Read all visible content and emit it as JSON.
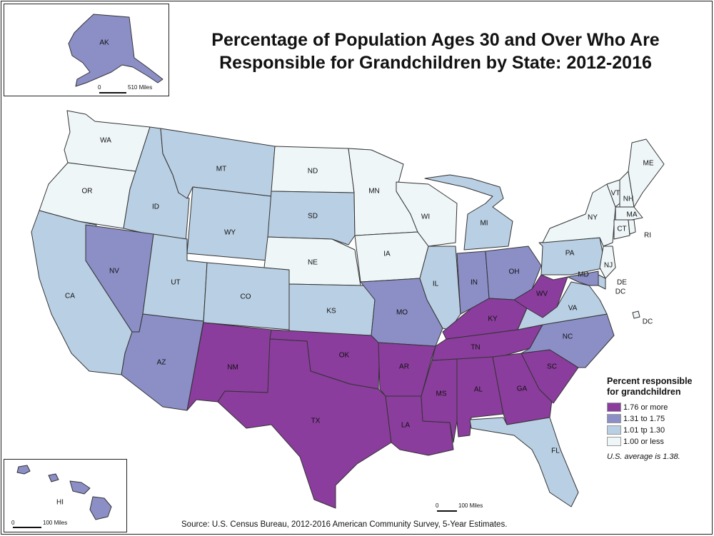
{
  "title": "Percentage of Population Ages 30 and Over Who Are Responsible for Grandchildren by State: 2012-2016",
  "source": "Source: U.S. Census Bureau, 2012-2016 American Community Survey, 5-Year Estimates.",
  "legend": {
    "title": "Percent responsible for grandchildren",
    "classes": [
      {
        "label": "1.76 or more",
        "color": "#8a3d9c"
      },
      {
        "label": "1.31 to 1.75",
        "color": "#8b8fc6"
      },
      {
        "label": "1.01 tp 1.30",
        "color": "#b9cfe3"
      },
      {
        "label": "1.00 or less",
        "color": "#eef6f8"
      }
    ],
    "note": "U.S. average is 1.38."
  },
  "insets": {
    "alaska": {
      "label": "AK",
      "scale_zero": "0",
      "scale_label": "510 Miles"
    },
    "hawaii": {
      "label": "HI",
      "scale_zero": "0",
      "scale_label": "100 Miles"
    }
  },
  "main_scale": {
    "zero": "0",
    "label": "100 Miles"
  },
  "states": {
    "WA": {
      "label": "WA",
      "class": 3
    },
    "OR": {
      "label": "OR",
      "class": 3
    },
    "CA": {
      "label": "CA",
      "class": 2
    },
    "ID": {
      "label": "ID",
      "class": 2
    },
    "NV": {
      "label": "NV",
      "class": 1
    },
    "MT": {
      "label": "MT",
      "class": 2
    },
    "WY": {
      "label": "WY",
      "class": 2
    },
    "UT": {
      "label": "UT",
      "class": 2
    },
    "AZ": {
      "label": "AZ",
      "class": 1
    },
    "CO": {
      "label": "CO",
      "class": 2
    },
    "NM": {
      "label": "NM",
      "class": 0
    },
    "ND": {
      "label": "ND",
      "class": 3
    },
    "SD": {
      "label": "SD",
      "class": 2
    },
    "NE": {
      "label": "NE",
      "class": 3
    },
    "KS": {
      "label": "KS",
      "class": 2
    },
    "OK": {
      "label": "OK",
      "class": 0
    },
    "TX": {
      "label": "TX",
      "class": 0
    },
    "MN": {
      "label": "MN",
      "class": 3
    },
    "IA": {
      "label": "IA",
      "class": 3
    },
    "MO": {
      "label": "MO",
      "class": 1
    },
    "AR": {
      "label": "AR",
      "class": 0
    },
    "LA": {
      "label": "LA",
      "class": 0
    },
    "WI": {
      "label": "WI",
      "class": 3
    },
    "IL": {
      "label": "IL",
      "class": 2
    },
    "MI": {
      "label": "MI",
      "class": 2
    },
    "IN": {
      "label": "IN",
      "class": 1
    },
    "OH": {
      "label": "OH",
      "class": 1
    },
    "KY": {
      "label": "KY",
      "class": 0
    },
    "TN": {
      "label": "TN",
      "class": 0
    },
    "MS": {
      "label": "MS",
      "class": 0
    },
    "AL": {
      "label": "AL",
      "class": 0
    },
    "GA": {
      "label": "GA",
      "class": 0
    },
    "FL": {
      "label": "FL",
      "class": 2
    },
    "SC": {
      "label": "SC",
      "class": 0
    },
    "NC": {
      "label": "NC",
      "class": 1
    },
    "VA": {
      "label": "VA",
      "class": 2
    },
    "WV": {
      "label": "WV",
      "class": 0
    },
    "PA": {
      "label": "PA",
      "class": 2
    },
    "NY": {
      "label": "NY",
      "class": 3
    },
    "VT": {
      "label": "VT",
      "class": 3
    },
    "NH": {
      "label": "NH",
      "class": 3
    },
    "ME": {
      "label": "ME",
      "class": 3
    },
    "MA": {
      "label": "MA",
      "class": 3
    },
    "CT": {
      "label": "CT",
      "class": 3
    },
    "RI": {
      "label": "RI",
      "class": 3
    },
    "NJ": {
      "label": "NJ",
      "class": 3
    },
    "DE": {
      "label": "DE",
      "class": 2
    },
    "MD": {
      "label": "MD",
      "class": 1
    },
    "DC": {
      "label": "DC",
      "class": 3
    },
    "AK": {
      "label": "AK",
      "class": 1
    },
    "HI": {
      "label": "HI",
      "class": 1
    }
  }
}
